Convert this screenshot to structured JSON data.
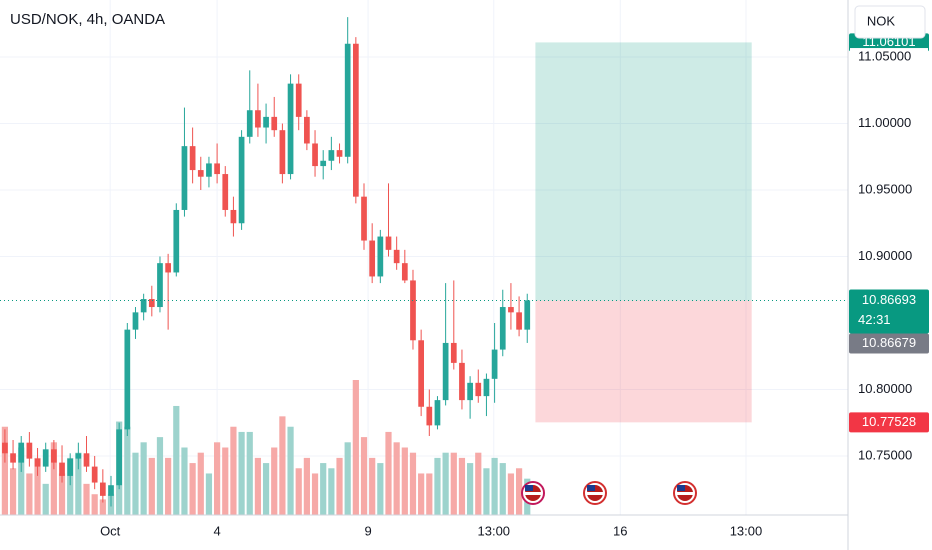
{
  "chart_data": {
    "type": "candlestick",
    "title": "USD/NOK, 4h, OANDA",
    "currency": "NOK",
    "up_color": "#26a69a",
    "down_color": "#ef5350",
    "volume_up_color": "#9dd3cd",
    "volume_down_color": "#f6a9a7",
    "grid": true,
    "ylim": [
      10.7056,
      11.0929
    ],
    "yticks": [
      {
        "value": 11.05,
        "label": "11.05000"
      },
      {
        "value": 11.0,
        "label": "11.00000"
      },
      {
        "value": 10.95,
        "label": "10.95000"
      },
      {
        "value": 10.9,
        "label": "10.90000"
      },
      {
        "value": 10.8,
        "label": "10.80000"
      },
      {
        "value": 10.75,
        "label": "10.75000"
      }
    ],
    "xlim": [
      -0.6,
      103.3
    ],
    "xticks": [
      {
        "value": 12.9,
        "label": "Oct"
      },
      {
        "value": 26,
        "label": "4"
      },
      {
        "value": 44.5,
        "label": "9"
      },
      {
        "value": 59.9,
        "label": "13:00"
      },
      {
        "value": 75.4,
        "label": "16"
      },
      {
        "value": 90.8,
        "label": "13:00"
      }
    ],
    "open": [
      10.76,
      10.752,
      10.745,
      10.76,
      10.748,
      10.742,
      10.755,
      10.745,
      10.735,
      10.748,
      10.752,
      10.742,
      10.73,
      10.72,
      10.728,
      10.77,
      10.845,
      10.858,
      10.868,
      10.862,
      10.895,
      10.888,
      10.935,
      10.983,
      10.965,
      10.96,
      10.97,
      10.962,
      10.935,
      10.925,
      10.99,
      11.01,
      10.997,
      11.005,
      10.995,
      10.962,
      11.03,
      11.005,
      10.985,
      10.968,
      10.972,
      10.98,
      10.975,
      11.06,
      10.945,
      10.912,
      10.885,
      10.915,
      10.905,
      10.895,
      10.882,
      10.837,
      10.787,
      10.773,
      10.792,
      10.835,
      10.82,
      10.792,
      10.805,
      10.795,
      10.808,
      10.83,
      10.862,
      10.858,
      10.845
    ],
    "high": [
      10.77,
      10.762,
      10.765,
      10.768,
      10.756,
      10.76,
      10.762,
      10.758,
      10.752,
      10.76,
      10.765,
      10.75,
      10.74,
      10.735,
      10.775,
      10.85,
      10.862,
      10.872,
      10.878,
      10.9,
      10.902,
      10.94,
      11.012,
      10.997,
      10.975,
      10.975,
      10.985,
      10.968,
      10.945,
      10.995,
      11.04,
      11.03,
      11.015,
      11.02,
      11.0,
      11.037,
      11.037,
      11.01,
      10.995,
      10.98,
      10.99,
      10.985,
      11.08,
      11.065,
      10.955,
      10.925,
      10.92,
      10.955,
      10.915,
      10.905,
      10.89,
      10.845,
      10.8,
      10.795,
      10.88,
      10.882,
      10.83,
      10.81,
      10.815,
      10.812,
      10.85,
      10.875,
      10.88,
      10.87,
      10.872
    ],
    "low": [
      10.745,
      10.74,
      10.738,
      10.742,
      10.735,
      10.738,
      10.74,
      10.73,
      10.728,
      10.74,
      10.738,
      10.725,
      10.715,
      10.712,
      10.725,
      10.765,
      10.838,
      10.852,
      10.855,
      10.858,
      10.845,
      10.885,
      10.93,
      10.955,
      10.95,
      10.952,
      10.955,
      10.93,
      10.915,
      10.92,
      10.985,
      10.99,
      10.985,
      10.99,
      10.955,
      10.958,
      10.995,
      10.98,
      10.96,
      10.958,
      10.965,
      10.97,
      10.97,
      10.94,
      10.905,
      10.88,
      10.88,
      10.9,
      10.89,
      10.88,
      10.83,
      10.78,
      10.765,
      10.77,
      10.788,
      10.815,
      10.785,
      10.778,
      10.79,
      10.78,
      10.79,
      10.825,
      10.845,
      10.84,
      10.835
    ],
    "close": [
      10.752,
      10.745,
      10.76,
      10.748,
      10.742,
      10.755,
      10.745,
      10.735,
      10.748,
      10.752,
      10.742,
      10.73,
      10.72,
      10.728,
      10.77,
      10.845,
      10.858,
      10.868,
      10.862,
      10.895,
      10.888,
      10.935,
      10.983,
      10.965,
      10.96,
      10.97,
      10.962,
      10.935,
      10.925,
      10.99,
      11.01,
      10.997,
      11.005,
      10.995,
      10.962,
      11.03,
      11.005,
      10.985,
      10.968,
      10.972,
      10.98,
      10.975,
      11.06,
      10.945,
      10.912,
      10.885,
      10.915,
      10.905,
      10.895,
      10.882,
      10.837,
      10.787,
      10.773,
      10.792,
      10.835,
      10.82,
      10.792,
      10.805,
      10.795,
      10.808,
      10.83,
      10.862,
      10.858,
      10.845,
      10.867
    ],
    "volume": [
      85,
      45,
      65,
      40,
      55,
      30,
      70,
      40,
      55,
      60,
      30,
      20,
      15,
      20,
      90,
      85,
      60,
      70,
      55,
      75,
      55,
      105,
      65,
      50,
      60,
      40,
      70,
      65,
      85,
      80,
      80,
      55,
      50,
      65,
      95,
      85,
      45,
      55,
      40,
      50,
      45,
      55,
      70,
      130,
      75,
      55,
      50,
      80,
      70,
      65,
      60,
      40,
      40,
      55,
      60,
      60,
      55,
      50,
      60,
      45,
      55,
      50,
      40,
      45,
      35
    ],
    "last_price": {
      "value": 10.86693,
      "countdown": "42:31",
      "color": "#089981"
    },
    "other_price": {
      "value": 10.86679,
      "color": "#787b86"
    },
    "position": {
      "entry": 10.86693,
      "target": 11.06101,
      "stop": 10.77528,
      "start": 65,
      "end": 91.5,
      "profit_color": "#089981",
      "loss_color": "#f23645"
    }
  }
}
